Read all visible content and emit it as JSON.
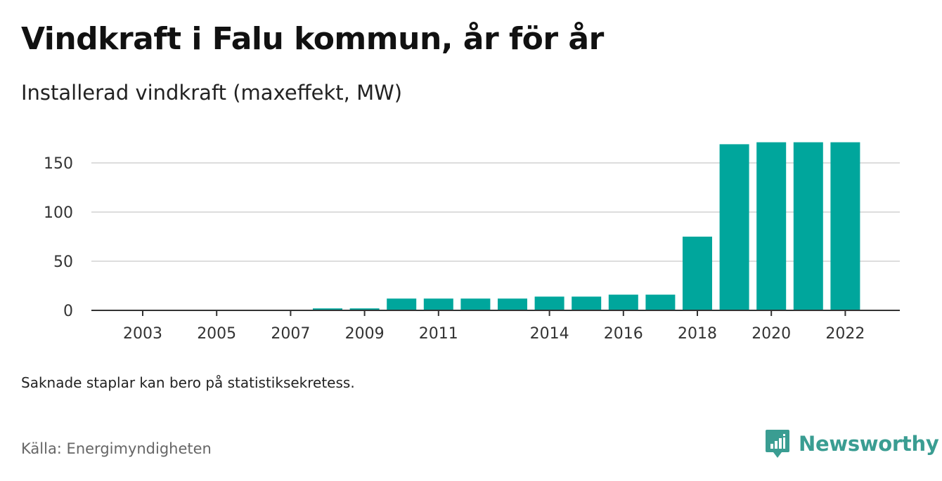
{
  "title": "Vindkraft i Falu kommun, år för år",
  "subtitle": "Installerad vindkraft (maxeffekt, MW)",
  "note": "Saknade staplar kan bero på statistiksekretess.",
  "source": "Källa: Energimyndigheten",
  "brand": {
    "name": "Newsworthy",
    "icon": "newsworthy-logo-icon",
    "color": "#3a9d92"
  },
  "colors": {
    "bar": "#00a69c",
    "grid": "#dddddd",
    "axis": "#333333"
  },
  "chart_data": {
    "type": "bar",
    "title": "Vindkraft i Falu kommun, år för år",
    "subtitle": "Installerad vindkraft (maxeffekt, MW)",
    "xlabel": "",
    "ylabel": "",
    "categories": [
      2003,
      2004,
      2005,
      2006,
      2007,
      2008,
      2009,
      2010,
      2011,
      2012,
      2013,
      2014,
      2015,
      2016,
      2017,
      2018,
      2019,
      2020,
      2021,
      2022
    ],
    "values": [
      null,
      null,
      null,
      null,
      null,
      2,
      2,
      12,
      12,
      12,
      12,
      14,
      14,
      16,
      16,
      75,
      169,
      171,
      171,
      171
    ],
    "xticks": [
      "2003",
      "2005",
      "2007",
      "2009",
      "2011",
      "2014",
      "2016",
      "2018",
      "2020",
      "2022"
    ],
    "yticks": [
      0,
      50,
      100,
      150
    ],
    "ylim": [
      0,
      180
    ],
    "grid": true,
    "legend": "none"
  }
}
